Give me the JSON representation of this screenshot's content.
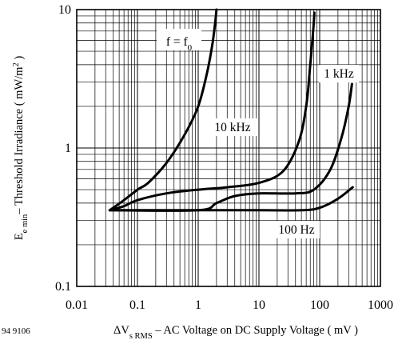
{
  "chart_data": {
    "type": "line",
    "x_scale": "log",
    "y_scale": "log",
    "xlim": [
      0.01,
      1000
    ],
    "ylim": [
      0.1,
      10
    ],
    "x_ticks": [
      "0.01",
      "0.1",
      "1",
      "10",
      "100",
      "1000"
    ],
    "y_ticks": [
      "0.1",
      "1",
      "10"
    ],
    "figure_id": "94 9106",
    "xlabel": {
      "symbol": "ΔV",
      "subscript": "s RMS",
      "rest": " – AC Voltage on DC Supply Voltage ( mV )"
    },
    "ylabel": {
      "symbol": "E",
      "subscript": "e min",
      "rest": "– Threshold Irradiance ( mW/m",
      "superscript": "2",
      "close": " )"
    },
    "grid": true,
    "series": [
      {
        "name": "f = f0",
        "label": {
          "main": "f = f",
          "sub": "0"
        },
        "points": [
          [
            0.035,
            0.355
          ],
          [
            0.06,
            0.42
          ],
          [
            0.1,
            0.5
          ],
          [
            0.15,
            0.56
          ],
          [
            0.3,
            0.78
          ],
          [
            0.6,
            1.25
          ],
          [
            1.0,
            2.0
          ],
          [
            1.4,
            3.5
          ],
          [
            1.7,
            5.5
          ],
          [
            1.9,
            8.0
          ],
          [
            2.0,
            10.0
          ]
        ]
      },
      {
        "name": "10 kHz",
        "label": {
          "main": "10 kHz"
        },
        "points": [
          [
            0.035,
            0.355
          ],
          [
            0.06,
            0.38
          ],
          [
            0.1,
            0.42
          ],
          [
            0.3,
            0.47
          ],
          [
            1.0,
            0.5
          ],
          [
            3.0,
            0.52
          ],
          [
            10.0,
            0.56
          ],
          [
            25.0,
            0.68
          ],
          [
            45.0,
            1.1
          ],
          [
            60.0,
            2.0
          ],
          [
            70.0,
            4.0
          ],
          [
            78.0,
            7.0
          ],
          [
            82.0,
            9.5
          ]
        ]
      },
      {
        "name": "1 kHz",
        "label": {
          "main": "1 kHz"
        },
        "points": [
          [
            0.035,
            0.355
          ],
          [
            1.0,
            0.355
          ],
          [
            2.0,
            0.4
          ],
          [
            4.0,
            0.45
          ],
          [
            10.0,
            0.47
          ],
          [
            40.0,
            0.47
          ],
          [
            80.0,
            0.5
          ],
          [
            150.0,
            0.7
          ],
          [
            230.0,
            1.2
          ],
          [
            300.0,
            2.0
          ],
          [
            340.0,
            2.9
          ]
        ]
      },
      {
        "name": "100 Hz",
        "label": {
          "main": "100 Hz"
        },
        "points": [
          [
            0.035,
            0.355
          ],
          [
            10.0,
            0.355
          ],
          [
            50.0,
            0.355
          ],
          [
            100.0,
            0.37
          ],
          [
            200.0,
            0.43
          ],
          [
            350.0,
            0.52
          ]
        ]
      }
    ]
  }
}
